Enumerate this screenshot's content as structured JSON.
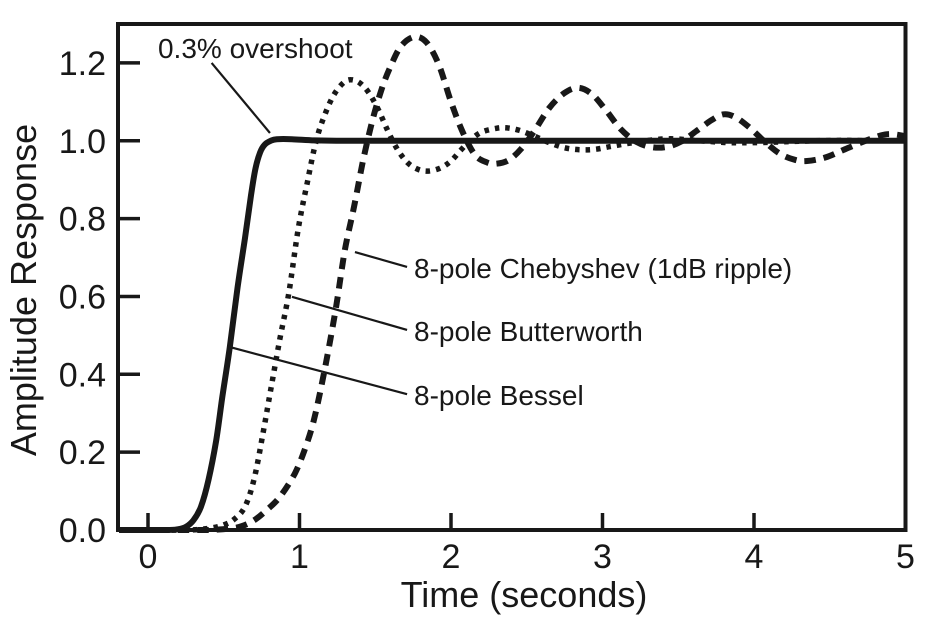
{
  "chart_data": {
    "type": "line",
    "title": "",
    "xlabel": "Time (seconds)",
    "ylabel": "Amplitude Response",
    "xlim": [
      -0.198,
      5
    ],
    "ylim": [
      0,
      1.3
    ],
    "grid": false,
    "background": "#ffffff",
    "ink_color": "#181818",
    "legend_position": "callout-annotations-inside-plot",
    "x_ticks": [
      {
        "v": 0,
        "label": "0"
      },
      {
        "v": 1,
        "label": "1"
      },
      {
        "v": 2,
        "label": "2"
      },
      {
        "v": 3,
        "label": "3"
      },
      {
        "v": 4,
        "label": "4"
      },
      {
        "v": 5,
        "label": "5"
      }
    ],
    "y_ticks": [
      {
        "v": 0.0,
        "label": "0.0"
      },
      {
        "v": 0.2,
        "label": "0.2"
      },
      {
        "v": 0.4,
        "label": "0.4"
      },
      {
        "v": 0.6,
        "label": "0.6"
      },
      {
        "v": 0.8,
        "label": "0.8"
      },
      {
        "v": 1.0,
        "label": "1.0"
      },
      {
        "v": 1.2,
        "label": "1.2"
      }
    ],
    "series": [
      {
        "id": "bessel",
        "name": "8-pole Bessel",
        "style": "solid",
        "points": [
          [
            -0.19,
            0
          ],
          [
            0.12,
            0
          ],
          [
            0.2,
            0.002
          ],
          [
            0.25,
            0.008
          ],
          [
            0.3,
            0.025
          ],
          [
            0.35,
            0.06
          ],
          [
            0.4,
            0.13
          ],
          [
            0.45,
            0.23
          ],
          [
            0.49,
            0.34
          ],
          [
            0.54,
            0.47
          ],
          [
            0.59,
            0.62
          ],
          [
            0.64,
            0.75
          ],
          [
            0.68,
            0.86
          ],
          [
            0.71,
            0.93
          ],
          [
            0.74,
            0.97
          ],
          [
            0.77,
            0.99
          ],
          [
            0.81,
            1.0
          ],
          [
            0.85,
            1.004
          ],
          [
            0.95,
            1.004
          ],
          [
            1.1,
            1.001
          ],
          [
            1.3,
            1.0
          ],
          [
            1.7,
            1.0
          ],
          [
            2.2,
            1.0
          ],
          [
            2.8,
            1.0
          ],
          [
            3.4,
            1.0
          ],
          [
            4.2,
            1.0
          ],
          [
            5,
            1.0
          ]
        ]
      },
      {
        "id": "butterworth",
        "name": "8-pole Butterworth",
        "style": "dotted",
        "points": [
          [
            -0.19,
            0
          ],
          [
            0.25,
            0
          ],
          [
            0.4,
            0.004
          ],
          [
            0.5,
            0.013
          ],
          [
            0.57,
            0.028
          ],
          [
            0.64,
            0.06
          ],
          [
            0.7,
            0.13
          ],
          [
            0.76,
            0.25
          ],
          [
            0.81,
            0.36
          ],
          [
            0.87,
            0.49
          ],
          [
            0.93,
            0.61
          ],
          [
            0.99,
            0.77
          ],
          [
            1.05,
            0.89
          ],
          [
            1.11,
            1.0
          ],
          [
            1.17,
            1.07
          ],
          [
            1.23,
            1.12
          ],
          [
            1.29,
            1.149
          ],
          [
            1.34,
            1.157
          ],
          [
            1.4,
            1.148
          ],
          [
            1.46,
            1.122
          ],
          [
            1.52,
            1.08
          ],
          [
            1.58,
            1.028
          ],
          [
            1.64,
            0.982
          ],
          [
            1.71,
            0.945
          ],
          [
            1.78,
            0.927
          ],
          [
            1.85,
            0.922
          ],
          [
            1.93,
            0.93
          ],
          [
            2.0,
            0.948
          ],
          [
            2.07,
            0.978
          ],
          [
            2.13,
            1.002
          ],
          [
            2.2,
            1.022
          ],
          [
            2.3,
            1.032
          ],
          [
            2.37,
            1.033
          ],
          [
            2.45,
            1.027
          ],
          [
            2.55,
            1.012
          ],
          [
            2.65,
            0.995
          ],
          [
            2.75,
            0.982
          ],
          [
            2.85,
            0.977
          ],
          [
            2.95,
            0.978
          ],
          [
            3.05,
            0.985
          ],
          [
            3.15,
            0.992
          ],
          [
            3.25,
            0.998
          ],
          [
            3.35,
            1.003
          ],
          [
            3.45,
            1.005
          ],
          [
            3.55,
            1.003
          ],
          [
            3.65,
            1.0
          ],
          [
            3.75,
            0.997
          ],
          [
            3.85,
            0.995
          ],
          [
            3.95,
            0.995
          ],
          [
            4.1,
            0.996
          ],
          [
            4.25,
            0.998
          ],
          [
            4.4,
            1.0
          ],
          [
            4.6,
            1.001
          ],
          [
            4.8,
            1.0
          ],
          [
            5,
            1.0
          ]
        ]
      },
      {
        "id": "chebyshev",
        "name": "8-pole Chebyshev (1dB ripple)",
        "style": "dashed",
        "points": [
          [
            -0.19,
            0
          ],
          [
            0.35,
            0
          ],
          [
            0.45,
            0.001
          ],
          [
            0.55,
            0.004
          ],
          [
            0.62,
            0.01
          ],
          [
            0.7,
            0.025
          ],
          [
            0.78,
            0.05
          ],
          [
            0.87,
            0.085
          ],
          [
            0.97,
            0.146
          ],
          [
            1.04,
            0.213
          ],
          [
            1.1,
            0.29
          ],
          [
            1.17,
            0.42
          ],
          [
            1.24,
            0.57
          ],
          [
            1.3,
            0.72
          ],
          [
            1.36,
            0.83
          ],
          [
            1.42,
            0.95
          ],
          [
            1.48,
            1.05
          ],
          [
            1.54,
            1.13
          ],
          [
            1.6,
            1.19
          ],
          [
            1.67,
            1.243
          ],
          [
            1.76,
            1.267
          ],
          [
            1.84,
            1.252
          ],
          [
            1.92,
            1.195
          ],
          [
            2.0,
            1.1
          ],
          [
            2.08,
            1.02
          ],
          [
            2.16,
            0.963
          ],
          [
            2.24,
            0.944
          ],
          [
            2.3,
            0.941
          ],
          [
            2.38,
            0.95
          ],
          [
            2.46,
            0.978
          ],
          [
            2.55,
            1.025
          ],
          [
            2.65,
            1.085
          ],
          [
            2.75,
            1.123
          ],
          [
            2.84,
            1.136
          ],
          [
            2.93,
            1.12
          ],
          [
            3.02,
            1.08
          ],
          [
            3.12,
            1.03
          ],
          [
            3.22,
            0.998
          ],
          [
            3.32,
            0.984
          ],
          [
            3.42,
            0.984
          ],
          [
            3.52,
            0.998
          ],
          [
            3.62,
            1.025
          ],
          [
            3.72,
            1.053
          ],
          [
            3.8,
            1.068
          ],
          [
            3.88,
            1.06
          ],
          [
            3.97,
            1.034
          ],
          [
            4.07,
            0.998
          ],
          [
            4.17,
            0.967
          ],
          [
            4.27,
            0.951
          ],
          [
            4.35,
            0.948
          ],
          [
            4.47,
            0.957
          ],
          [
            4.6,
            0.978
          ],
          [
            4.75,
            1.002
          ],
          [
            4.88,
            1.017
          ],
          [
            5,
            1.012
          ]
        ]
      }
    ],
    "annotations": [
      {
        "id": "overshoot",
        "text": "0.3% overshoot",
        "label_t": 0.066,
        "label_v": 1.213,
        "anchor": "start",
        "leader": [
          [
            0.42,
            1.2
          ],
          [
            0.805,
            1.02
          ]
        ]
      },
      {
        "id": "chebyshev-callout",
        "text": "8-pole Chebyshev (1dB ripple)",
        "label_t": 1.756,
        "label_v": 0.647,
        "anchor": "start",
        "leader": [
          [
            1.366,
            0.714
          ],
          [
            1.71,
            0.676
          ]
        ]
      },
      {
        "id": "butterworth-callout",
        "text": "8-pole Butterworth",
        "label_t": 1.756,
        "label_v": 0.486,
        "anchor": "start",
        "leader": [
          [
            0.95,
            0.599
          ],
          [
            1.71,
            0.514
          ]
        ]
      },
      {
        "id": "bessel-callout",
        "text": "8-pole Bessel",
        "label_t": 1.756,
        "label_v": 0.321,
        "anchor": "start",
        "leader": [
          [
            0.541,
            0.47
          ],
          [
            1.71,
            0.349
          ]
        ]
      }
    ]
  }
}
